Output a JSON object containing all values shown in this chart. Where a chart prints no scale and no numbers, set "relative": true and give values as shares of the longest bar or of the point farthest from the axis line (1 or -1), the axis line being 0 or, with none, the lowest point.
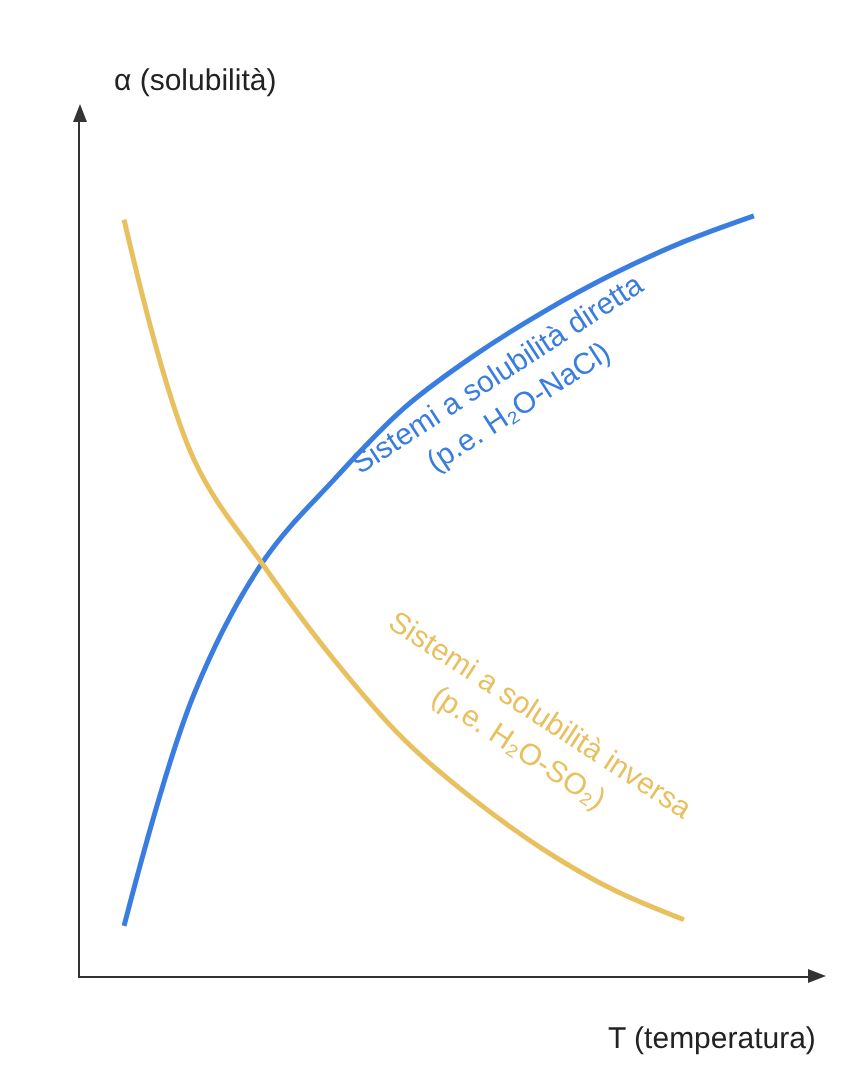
{
  "chart_data": {
    "type": "line",
    "relative": true,
    "xlabel": "T (temperatura)",
    "ylabel": "α (solubilità)",
    "categories": [
      null,
      null,
      null,
      null,
      null,
      null,
      null,
      null,
      null,
      null
    ],
    "legend": false,
    "grid": false,
    "marker": "none",
    "line_style": "solid",
    "series": [
      {
        "name": "Sistemi a solubilità diretta\n(p.e. H₂O-NaCl)",
        "color": "#3a7de0",
        "values": [
          0.066,
          0.371,
          0.547,
          0.653,
          0.747,
          0.816,
          0.874,
          0.924,
          0.966,
          1
        ]
      },
      {
        "name": "Sistemi a solubilità inversa\n(p.e. H₂O-SO₂)",
        "color": "#e8c060",
        "values": [
          0.995,
          0.679,
          0.539,
          0.416,
          0.311,
          0.232,
          0.166,
          0.113,
          0.074,
          null
        ]
      }
    ]
  }
}
